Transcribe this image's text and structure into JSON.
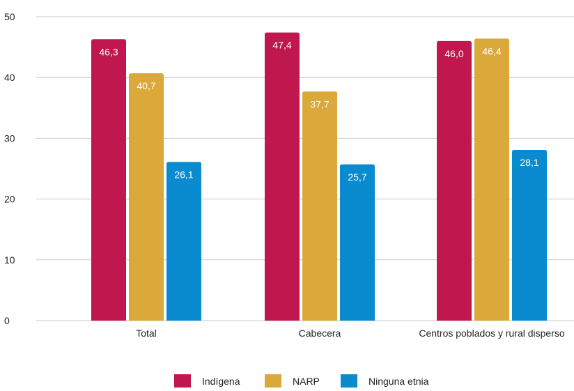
{
  "chart_data": {
    "type": "bar",
    "categories": [
      "Total",
      "Cabecera",
      "Centros poblados y rural disperso"
    ],
    "series": [
      {
        "name": "Indígena",
        "values": [
          46.3,
          47.4,
          46.0
        ],
        "labels": [
          "46,3",
          "47,4",
          "46,0"
        ],
        "color": "#BF174E"
      },
      {
        "name": "NARP",
        "values": [
          40.7,
          37.7,
          46.4
        ],
        "labels": [
          "40,7",
          "37,7",
          "46,4"
        ],
        "color": "#DBA83A"
      },
      {
        "name": "Ninguna etnia",
        "values": [
          26.1,
          25.7,
          28.1
        ],
        "labels": [
          "26,1",
          "25,7",
          "28,1"
        ],
        "color": "#0A8BD0"
      }
    ],
    "ylim": [
      0,
      50
    ],
    "yticks": [
      "0",
      "10",
      "20",
      "30",
      "40",
      "50"
    ],
    "ytick_values": [
      0,
      10,
      20,
      30,
      40,
      50
    ],
    "grid": true,
    "gridline_color": "#C8C8C8",
    "legend_position": "bottom",
    "title": "",
    "xlabel": "",
    "ylabel": ""
  }
}
